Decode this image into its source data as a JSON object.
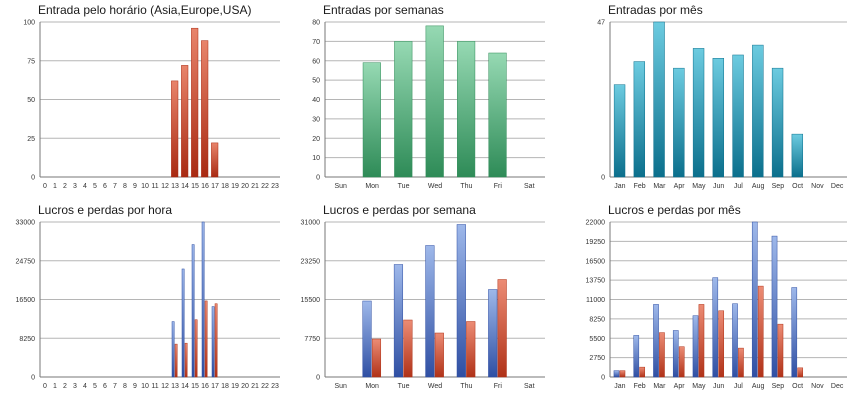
{
  "colors": {
    "red_light": "#e8846b",
    "red_dark": "#a82a12",
    "green_light": "#96d9b3",
    "green_dark": "#2e8b57",
    "teal_light": "#6ccbe0",
    "teal_dark": "#0b6f8c",
    "blue_light": "#9eb8ea",
    "blue_dark": "#2f4fa3",
    "red2_light": "#ec8c75",
    "red2_dark": "#b03218"
  },
  "chart_data": [
    {
      "type": "bar",
      "title": "Entrada pelo horário (Asia,Europe,USA)",
      "categories": [
        "0",
        "1",
        "2",
        "3",
        "4",
        "5",
        "6",
        "7",
        "8",
        "9",
        "10",
        "11",
        "12",
        "13",
        "14",
        "15",
        "16",
        "17",
        "18",
        "19",
        "20",
        "21",
        "22",
        "23"
      ],
      "yticks": [
        "0",
        "25",
        "50",
        "75",
        "100"
      ],
      "ylim": [
        0,
        100
      ],
      "series": [
        {
          "values": [
            0,
            0,
            0,
            0,
            0,
            0,
            0,
            0,
            0,
            0,
            0,
            0,
            0,
            62,
            72,
            96,
            88,
            22,
            0,
            0,
            0,
            0,
            0,
            0
          ],
          "color": "red"
        }
      ]
    },
    {
      "type": "bar",
      "title": "Entradas por semanas",
      "categories": [
        "Sun",
        "Mon",
        "Tue",
        "Wed",
        "Thu",
        "Fri",
        "Sat"
      ],
      "yticks": [
        "0",
        "10",
        "20",
        "30",
        "40",
        "50",
        "60",
        "70",
        "80"
      ],
      "ylim": [
        0,
        80
      ],
      "series": [
        {
          "values": [
            0,
            59,
            70,
            78,
            70,
            64,
            0
          ],
          "color": "green"
        }
      ]
    },
    {
      "type": "bar",
      "title": "Entradas por mês",
      "categories": [
        "Jan",
        "Feb",
        "Mar",
        "Apr",
        "May",
        "Jun",
        "Jul",
        "Aug",
        "Sep",
        "Oct",
        "Nov",
        "Dec"
      ],
      "yticks": [
        "0",
        "47"
      ],
      "ylim": [
        0,
        47
      ],
      "series": [
        {
          "values": [
            28,
            35,
            47,
            33,
            39,
            36,
            37,
            40,
            33,
            13,
            0,
            0
          ],
          "color": "teal"
        }
      ]
    },
    {
      "type": "bar",
      "title": "Lucros e perdas por hora",
      "categories": [
        "0",
        "1",
        "2",
        "3",
        "4",
        "5",
        "6",
        "7",
        "8",
        "9",
        "10",
        "11",
        "12",
        "13",
        "14",
        "15",
        "16",
        "17",
        "18",
        "19",
        "20",
        "21",
        "22",
        "23"
      ],
      "yticks": [
        "0",
        "8250",
        "16500",
        "24750",
        "33000"
      ],
      "ylim": [
        0,
        33000
      ],
      "series": [
        {
          "values": [
            0,
            0,
            0,
            0,
            0,
            0,
            0,
            0,
            0,
            0,
            0,
            0,
            0,
            11800,
            23000,
            28200,
            33000,
            15000,
            0,
            0,
            0,
            0,
            0,
            0
          ],
          "color": "blue"
        },
        {
          "values": [
            0,
            0,
            0,
            0,
            0,
            0,
            0,
            0,
            0,
            0,
            0,
            0,
            0,
            7000,
            7200,
            12200,
            16200,
            15600,
            0,
            0,
            0,
            0,
            0,
            0
          ],
          "color": "red2"
        }
      ]
    },
    {
      "type": "bar",
      "title": "Lucros e perdas por semana",
      "categories": [
        "Sun",
        "Mon",
        "Tue",
        "Wed",
        "Thu",
        "Fri",
        "Sat"
      ],
      "yticks": [
        "0",
        "7750",
        "15500",
        "23250",
        "31000"
      ],
      "ylim": [
        0,
        31000
      ],
      "series": [
        {
          "values": [
            0,
            15200,
            22500,
            26300,
            30500,
            17500,
            0
          ],
          "color": "blue"
        },
        {
          "values": [
            0,
            7600,
            11400,
            8800,
            11100,
            19500,
            0
          ],
          "color": "red2"
        }
      ]
    },
    {
      "type": "bar",
      "title": "Lucros e perdas por mês",
      "categories": [
        "Jan",
        "Feb",
        "Mar",
        "Apr",
        "May",
        "Jun",
        "Jul",
        "Aug",
        "Sep",
        "Oct",
        "Nov",
        "Dec"
      ],
      "yticks": [
        "0",
        "2750",
        "5500",
        "8250",
        "11000",
        "13750",
        "16500",
        "19250",
        "22000"
      ],
      "ylim": [
        0,
        22000
      ],
      "series": [
        {
          "values": [
            900,
            5900,
            10300,
            6600,
            8700,
            14100,
            10400,
            22000,
            20000,
            12700,
            0,
            0
          ],
          "color": "blue"
        },
        {
          "values": [
            900,
            1400,
            6300,
            4300,
            10300,
            9400,
            4100,
            12900,
            7500,
            1300,
            0,
            0
          ],
          "color": "red2"
        }
      ]
    }
  ]
}
